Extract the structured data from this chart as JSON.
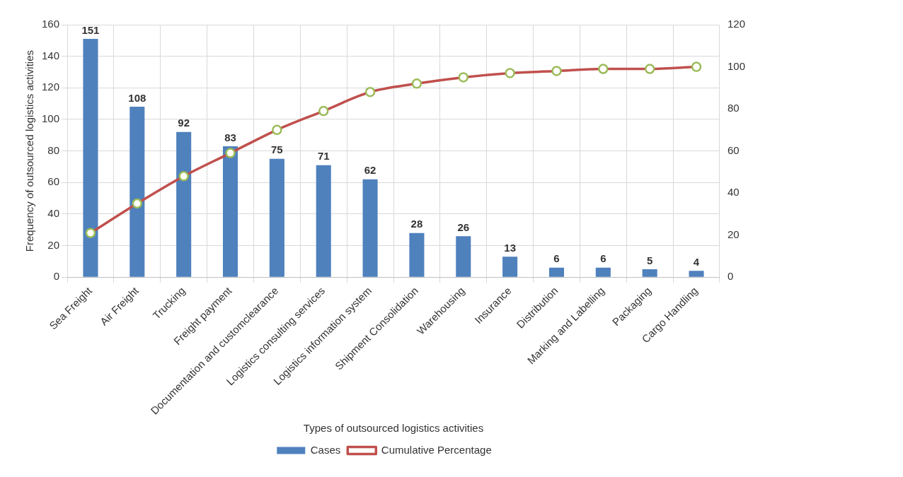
{
  "chart_data": {
    "type": "bar",
    "xlabel": "Types of outsourced logistics activities",
    "ylabel": "Frequency of outsourced logistics activities",
    "categories": [
      "Sea Freight",
      "Air Freight",
      "Trucking",
      "Freight payment",
      "Documentation and customclearance",
      "Logistics consulting services",
      "Logistics information system",
      "Shipment Consolidation",
      "Warehousing",
      "Insurance",
      "Distribution",
      "Marking and Labelling",
      "Packaging",
      "Cargo Handling"
    ],
    "series": [
      {
        "name": "Cases",
        "color": "#4f81bd",
        "values": [
          151,
          108,
          92,
          83,
          75,
          71,
          62,
          28,
          26,
          13,
          6,
          6,
          5,
          4
        ],
        "value_labels": [
          "151",
          "108",
          "92",
          "83",
          "75",
          "71",
          "62",
          "28",
          "26",
          "13",
          "6",
          "6",
          "5",
          "4"
        ]
      },
      {
        "name": "Cumulative Percentage",
        "type": "line",
        "axis": "y2",
        "color": "#c0504d",
        "marker": "circle",
        "values": [
          21,
          35,
          48,
          59,
          70,
          79,
          88,
          92,
          95,
          97,
          98,
          99,
          99,
          100
        ]
      }
    ],
    "ylim": [
      0,
      160
    ],
    "yticks": [
      0,
      20,
      40,
      60,
      80,
      100,
      120,
      140,
      160
    ],
    "y2lim": [
      0,
      120
    ],
    "y2ticks": [
      0,
      20,
      40,
      60,
      80,
      100,
      120
    ],
    "grid": true,
    "legend": "bottom"
  }
}
